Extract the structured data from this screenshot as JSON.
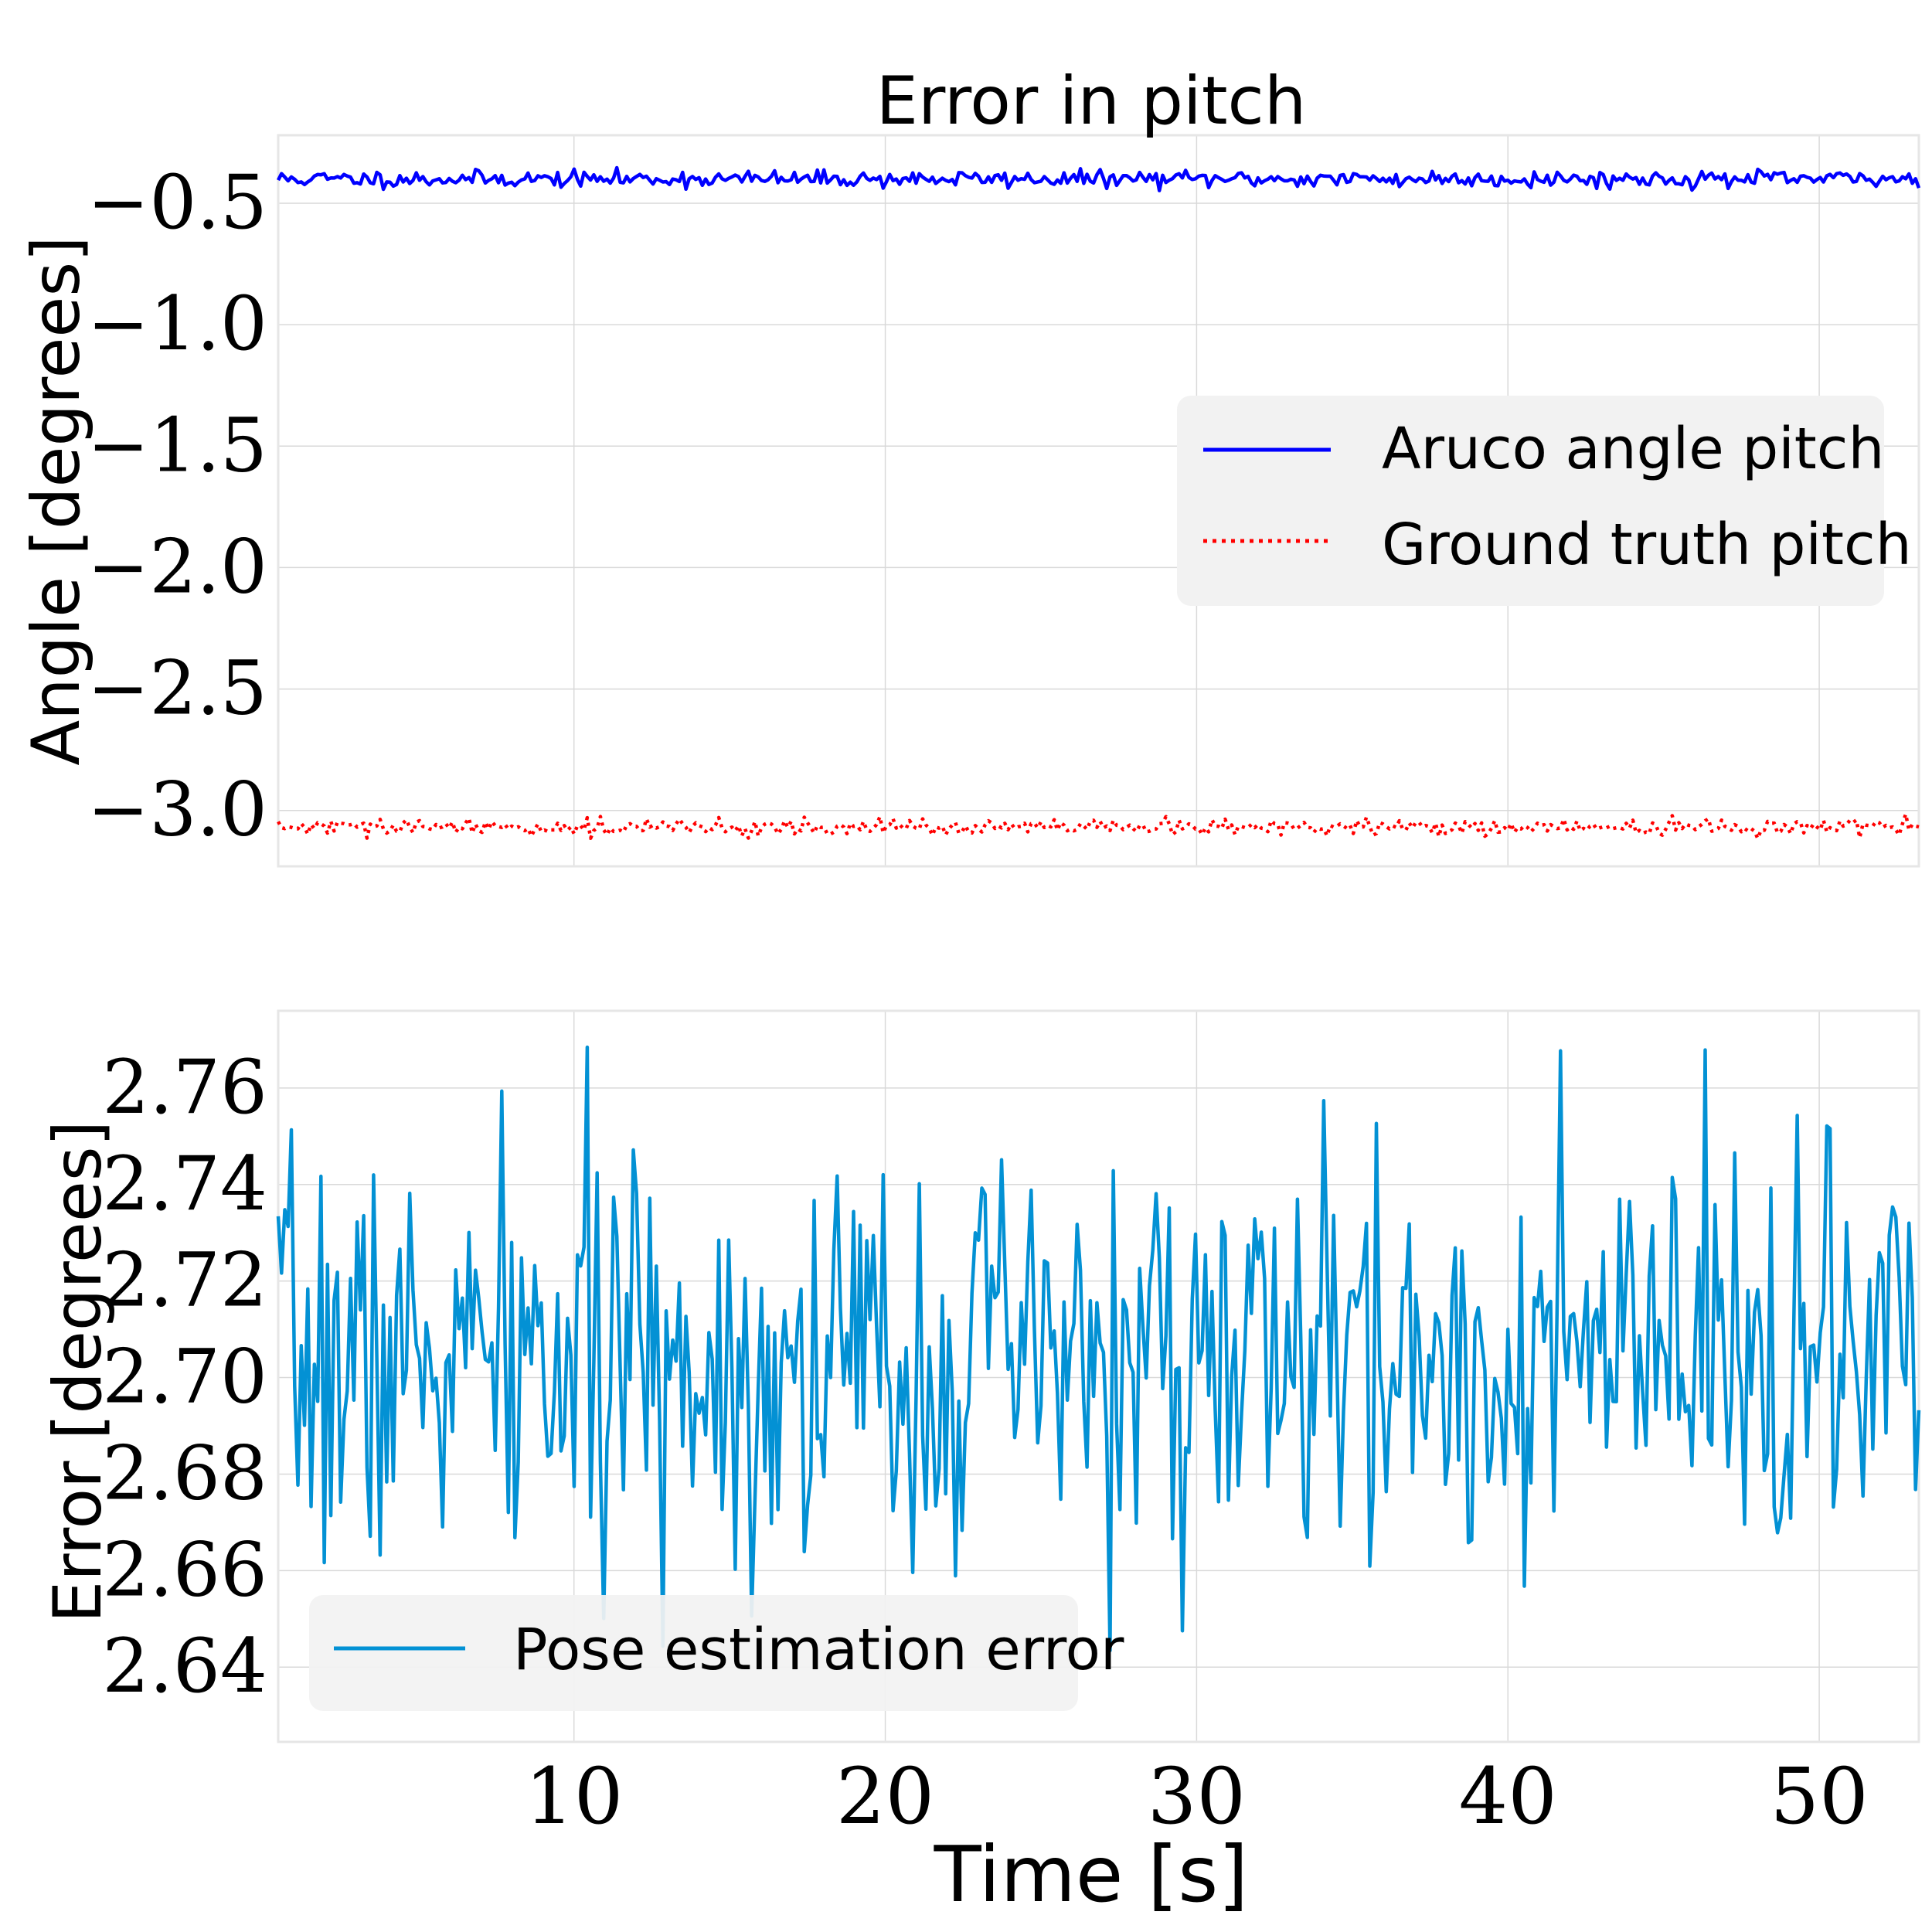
{
  "colors": {
    "background": "#ffffff",
    "grid": "#d9d9d9",
    "spine": "#e6e6e6",
    "legend_bg": "#f2f2f2",
    "text": "#000000"
  },
  "chart_data": [
    {
      "type": "line",
      "title": "Error in pitch",
      "xlabel": "",
      "ylabel": "Angle [degrees]",
      "xlim": [
        0.5,
        53.2
      ],
      "ylim": [
        -3.23,
        -0.22
      ],
      "xticks": [
        10,
        20,
        30,
        40,
        50
      ],
      "xtick_labels_visible": false,
      "yticks": [
        -3.0,
        -2.5,
        -2.0,
        -1.5,
        -1.0,
        -0.5
      ],
      "ytick_labels": [
        "−3.0",
        "−2.5",
        "−2.0",
        "−1.5",
        "−1.0",
        "−0.5"
      ],
      "grid": true,
      "legend_position": "center-right",
      "series": [
        {
          "name": "Aruco angle pitch",
          "color": "#0000ff",
          "style": "solid",
          "x_start": 0.5,
          "x_end": 53.2,
          "mean": -0.4,
          "noise": 0.017,
          "samples": 500,
          "seed": 11
        },
        {
          "name": "Ground truth pitch",
          "color": "#ff0000",
          "style": "dotted",
          "x_start": 0.5,
          "x_end": 53.2,
          "mean": -3.07,
          "noise": 0.017,
          "samples": 500,
          "seed": 29
        }
      ]
    },
    {
      "type": "line",
      "title": "",
      "xlabel": "Time [s]",
      "ylabel": "Error [degrees]",
      "xlim": [
        0.5,
        53.2
      ],
      "ylim": [
        2.6245,
        2.776
      ],
      "xticks": [
        10,
        20,
        30,
        40,
        50
      ],
      "xtick_labels": [
        "10",
        "20",
        "30",
        "40",
        "50"
      ],
      "yticks": [
        2.64,
        2.66,
        2.68,
        2.7,
        2.72,
        2.74,
        2.76
      ],
      "ytick_labels": [
        "2.64",
        "2.66",
        "2.68",
        "2.70",
        "2.72",
        "2.74",
        "2.76"
      ],
      "grid": true,
      "legend_position": "lower-left",
      "series": [
        {
          "name": "Pose estimation error",
          "color": "#0391d4",
          "style": "solid",
          "x_start": 0.5,
          "x_end": 53.2,
          "mean": 2.703,
          "noise": 0.021,
          "samples": 500,
          "seed": 7,
          "y_min_shown": 2.631,
          "y_max_shown": 2.769
        }
      ]
    }
  ]
}
